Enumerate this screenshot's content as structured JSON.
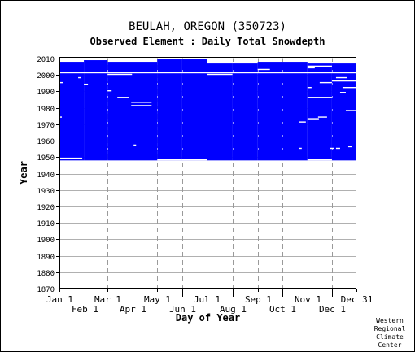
{
  "station": {
    "name": "BEULAH, OREGON",
    "id": "(350723)"
  },
  "subtitle": "Observed Element : Daily Total Snowdepth",
  "credit": [
    "Western",
    "Regional",
    "Climate",
    "Center"
  ],
  "chart_data": {
    "type": "heatmap",
    "title": "BEULAH, OREGON   (350723)",
    "subtitle": "Observed Element : Daily Total Snowdepth",
    "xlabel": "Day of Year",
    "ylabel": "Year",
    "xlim": [
      1,
      365
    ],
    "ylim": [
      1870,
      2011
    ],
    "grid": true,
    "data_color": "#0000ff",
    "x_ticks_upper": [
      {
        "label": "Jan 1",
        "day": 1
      },
      {
        "label": "Mar 1",
        "day": 60
      },
      {
        "label": "May 1",
        "day": 121
      },
      {
        "label": "Jul 1",
        "day": 182
      },
      {
        "label": "Sep 1",
        "day": 244
      },
      {
        "label": "Nov 1",
        "day": 305
      },
      {
        "label": "Dec 31",
        "day": 365
      }
    ],
    "x_ticks_lower": [
      {
        "label": "Feb 1",
        "day": 32
      },
      {
        "label": "Apr 1",
        "day": 91
      },
      {
        "label": "Jun 1",
        "day": 152
      },
      {
        "label": "Aug 1",
        "day": 213
      },
      {
        "label": "Oct 1",
        "day": 274
      },
      {
        "label": "Dec 1",
        "day": 335
      }
    ],
    "y_ticks": [
      1870,
      1880,
      1890,
      1900,
      1910,
      1920,
      1930,
      1940,
      1950,
      1960,
      1970,
      1980,
      1990,
      2000,
      2010
    ],
    "coverage": [
      {
        "from_day": 1,
        "to_day": 30,
        "from_year": 1948,
        "to_year": 2007
      },
      {
        "from_day": 31,
        "to_day": 59,
        "from_year": 1948,
        "to_year": 2008
      },
      {
        "from_day": 60,
        "to_day": 120,
        "from_year": 1948,
        "to_year": 2007
      },
      {
        "from_day": 121,
        "to_day": 150,
        "from_year": 1948,
        "to_year": 2009
      },
      {
        "from_day": 151,
        "to_day": 181,
        "from_year": 1948,
        "to_year": 2009
      },
      {
        "from_day": 182,
        "to_day": 212,
        "from_year": 1948,
        "to_year": 2006
      },
      {
        "from_day": 213,
        "to_day": 243,
        "from_year": 1948,
        "to_year": 2006
      },
      {
        "from_day": 244,
        "to_day": 273,
        "from_year": 1948,
        "to_year": 2007
      },
      {
        "from_day": 274,
        "to_day": 304,
        "from_year": 1948,
        "to_year": 2007
      },
      {
        "from_day": 305,
        "to_day": 334,
        "from_year": 1948,
        "to_year": 2006
      },
      {
        "from_day": 335,
        "to_day": 365,
        "from_year": 1948,
        "to_year": 2006
      }
    ],
    "missing": [
      {
        "from_day": 1,
        "to_day": 28,
        "year": 1949
      },
      {
        "from_day": 1,
        "to_day": 365,
        "year": 2001
      },
      {
        "from_day": 60,
        "to_day": 89,
        "year": 2000
      },
      {
        "from_day": 182,
        "to_day": 212,
        "year": 2000
      },
      {
        "from_day": 244,
        "to_day": 258,
        "year": 2003
      },
      {
        "from_day": 72,
        "to_day": 85,
        "year": 1986
      },
      {
        "from_day": 89,
        "to_day": 113,
        "year": 1983
      },
      {
        "from_day": 89,
        "to_day": 113,
        "year": 1981
      },
      {
        "from_day": 305,
        "to_day": 334,
        "year": 1986
      },
      {
        "from_day": 305,
        "to_day": 318,
        "year": 1973
      },
      {
        "from_day": 318,
        "to_day": 328,
        "year": 1974
      },
      {
        "from_day": 295,
        "to_day": 302,
        "year": 1971
      },
      {
        "from_day": 348,
        "to_day": 365,
        "year": 1992
      },
      {
        "from_day": 352,
        "to_day": 365,
        "year": 1978
      },
      {
        "from_day": 305,
        "to_day": 334,
        "year": 1948
      },
      {
        "from_day": 121,
        "to_day": 150,
        "year": 1948
      },
      {
        "from_day": 151,
        "to_day": 181,
        "year": 1948
      },
      {
        "from_day": 305,
        "to_day": 334,
        "year": 2005
      },
      {
        "from_day": 340,
        "to_day": 352,
        "year": 1998
      },
      {
        "from_day": 335,
        "to_day": 365,
        "year": 1996
      },
      {
        "from_day": 320,
        "to_day": 334,
        "year": 1995
      },
      {
        "from_day": 305,
        "to_day": 313,
        "year": 2004
      },
      {
        "from_day": 305,
        "to_day": 309,
        "year": 1992
      },
      {
        "from_day": 60,
        "to_day": 64,
        "year": 1990
      },
      {
        "from_day": 1,
        "to_day": 4,
        "year": 1995
      },
      {
        "from_day": 31,
        "to_day": 35,
        "year": 1994
      },
      {
        "from_day": 345,
        "to_day": 351,
        "year": 1989
      },
      {
        "from_day": 333,
        "to_day": 337,
        "year": 1955
      },
      {
        "from_day": 340,
        "to_day": 344,
        "year": 1955
      },
      {
        "from_day": 295,
        "to_day": 297,
        "year": 1955
      },
      {
        "from_day": 1,
        "to_day": 3,
        "year": 1974
      },
      {
        "from_day": 24,
        "to_day": 26,
        "year": 1998
      },
      {
        "from_day": 92,
        "to_day": 94,
        "year": 1957
      },
      {
        "from_day": 355,
        "to_day": 358,
        "year": 1956
      }
    ]
  }
}
